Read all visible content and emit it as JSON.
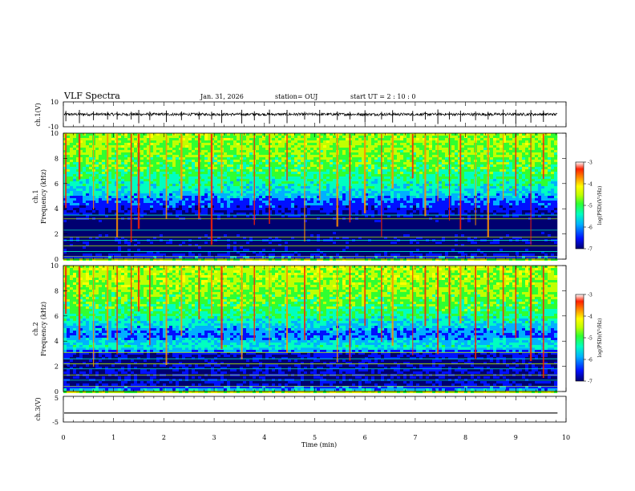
{
  "header": {
    "title": "VLF Spectra",
    "date": "Jan. 31, 2026",
    "station": "station= OUJ",
    "start_ut": "start UT =  2 : 10 : 0"
  },
  "panels": {
    "ch1_wave": {
      "ylabel": "ch.1(V)",
      "ticks": [
        "10",
        "-10"
      ]
    },
    "ch1_spec": {
      "ylabel_top": "ch.1",
      "ylabel": "Frequency (kHz)",
      "ticks": [
        "10",
        "8",
        "6",
        "4",
        "2",
        "0"
      ]
    },
    "ch2_spec": {
      "ylabel_top": "ch.2",
      "ylabel": "Frequency (kHz)",
      "ticks": [
        "10",
        "8",
        "6",
        "4",
        "2",
        "0"
      ]
    },
    "ch3_wave": {
      "ylabel": "ch.3(V)",
      "ticks": [
        "5",
        "-5"
      ]
    }
  },
  "colorbar": {
    "label": "log(PSD)(V²/Hz)",
    "ticks": [
      "-3",
      "-4",
      "-5",
      "-6",
      "-7"
    ],
    "colors": {
      "c0": "#000070",
      "c1": "#0010ff",
      "c2": "#00b0ff",
      "c3": "#00ffc0",
      "c4": "#30ff30",
      "c5": "#c0ff00",
      "c6": "#ffff00",
      "c7": "#ff9000",
      "c8": "#ff2000",
      "c9": "#ffffff"
    }
  },
  "xaxis": {
    "label": "Time (min)",
    "ticks": [
      "0",
      "1",
      "2",
      "3",
      "4",
      "5",
      "6",
      "7",
      "8",
      "9",
      "10"
    ]
  },
  "chart_data": [
    {
      "type": "line",
      "title": "VLF Spectra",
      "name": "ch1-waveform",
      "xlabel": "Time (min)",
      "ylabel": "ch.1(V)",
      "xlim": [
        0,
        9.83
      ],
      "ylim": [
        -10,
        10
      ],
      "baseline": 0,
      "spikes_min": [
        0.05,
        0.32,
        0.6,
        0.88,
        1.07,
        1.35,
        1.5,
        1.72,
        2.05,
        2.35,
        2.7,
        2.95,
        3.15,
        3.55,
        3.8,
        4.1,
        4.45,
        4.8,
        5.1,
        5.45,
        5.7,
        6.0,
        6.33,
        6.55,
        6.95,
        7.2,
        7.45,
        7.68,
        7.9,
        8.2,
        8.45,
        8.75,
        9.0,
        9.3,
        9.55
      ]
    },
    {
      "type": "heatmap",
      "name": "ch1-spectrogram",
      "xlabel": "Time (min)",
      "ylabel": "Frequency (kHz)",
      "xlim": [
        0,
        9.83
      ],
      "ylim": [
        0,
        10
      ],
      "zlabel": "log(PSD)(V²/Hz)",
      "zlim": [
        -7,
        -3
      ],
      "freq_levels_khz": [
        0,
        0.5,
        1,
        1.5,
        2,
        2.5,
        3,
        3.5,
        4,
        4.5,
        5,
        5.5,
        6,
        7,
        8,
        9,
        10
      ],
      "log_psd_profile": [
        -5.8,
        -6.8,
        -6.9,
        -6.7,
        -6.9,
        -7.0,
        -6.9,
        -6.6,
        -6.3,
        -6.0,
        -5.6,
        -5.3,
        -5.1,
        -4.8,
        -4.6,
        -4.5,
        -4.4
      ],
      "horizontal_lines_khz": [
        0.2,
        0.6,
        1.05,
        1.5,
        1.75,
        2.3,
        3.2,
        3.5
      ],
      "vertical_sferics_min": [
        0.05,
        0.32,
        0.6,
        0.88,
        1.07,
        1.35,
        1.5,
        1.72,
        2.05,
        2.35,
        2.7,
        2.95,
        3.15,
        3.55,
        3.8,
        4.1,
        4.45,
        4.8,
        5.1,
        5.45,
        5.7,
        6.0,
        6.33,
        6.55,
        6.95,
        7.2,
        7.45,
        7.68,
        7.9,
        8.2,
        8.45,
        8.75,
        9.0,
        9.3,
        9.55
      ]
    },
    {
      "type": "heatmap",
      "name": "ch2-spectrogram",
      "xlabel": "Time (min)",
      "ylabel": "Frequency (kHz)",
      "xlim": [
        0,
        9.83
      ],
      "ylim": [
        0,
        10
      ],
      "zlabel": "log(PSD)(V²/Hz)",
      "zlim": [
        -7,
        -3
      ],
      "freq_levels_khz": [
        0,
        0.5,
        1,
        1.5,
        2,
        2.5,
        3,
        3.5,
        4,
        4.5,
        5,
        5.5,
        6,
        7,
        8,
        9,
        10
      ],
      "log_psd_profile": [
        -5.2,
        -6.5,
        -6.7,
        -6.5,
        -6.6,
        -6.7,
        -6.4,
        -5.2,
        -5.5,
        -5.9,
        -5.6,
        -5.3,
        -5.0,
        -4.7,
        -4.5,
        -4.4,
        -4.3
      ],
      "horizontal_lines_khz": [
        0.4,
        0.9,
        1.3,
        1.8,
        2.2,
        2.6,
        3.1,
        3.5
      ],
      "vertical_sferics_min": [
        0.05,
        0.32,
        0.6,
        0.88,
        1.07,
        1.35,
        1.5,
        1.72,
        2.05,
        2.35,
        2.7,
        2.95,
        3.15,
        3.55,
        3.8,
        4.1,
        4.45,
        4.8,
        5.1,
        5.45,
        5.7,
        6.0,
        6.33,
        6.55,
        6.95,
        7.2,
        7.45,
        7.68,
        7.9,
        8.2,
        8.45,
        8.75,
        9.0,
        9.3,
        9.55
      ]
    },
    {
      "type": "line",
      "name": "ch3-waveform",
      "xlabel": "Time (min)",
      "ylabel": "ch.3(V)",
      "xlim": [
        0,
        9.83
      ],
      "ylim": [
        -5,
        5
      ],
      "values": [
        -1.5,
        -1.5
      ]
    }
  ]
}
